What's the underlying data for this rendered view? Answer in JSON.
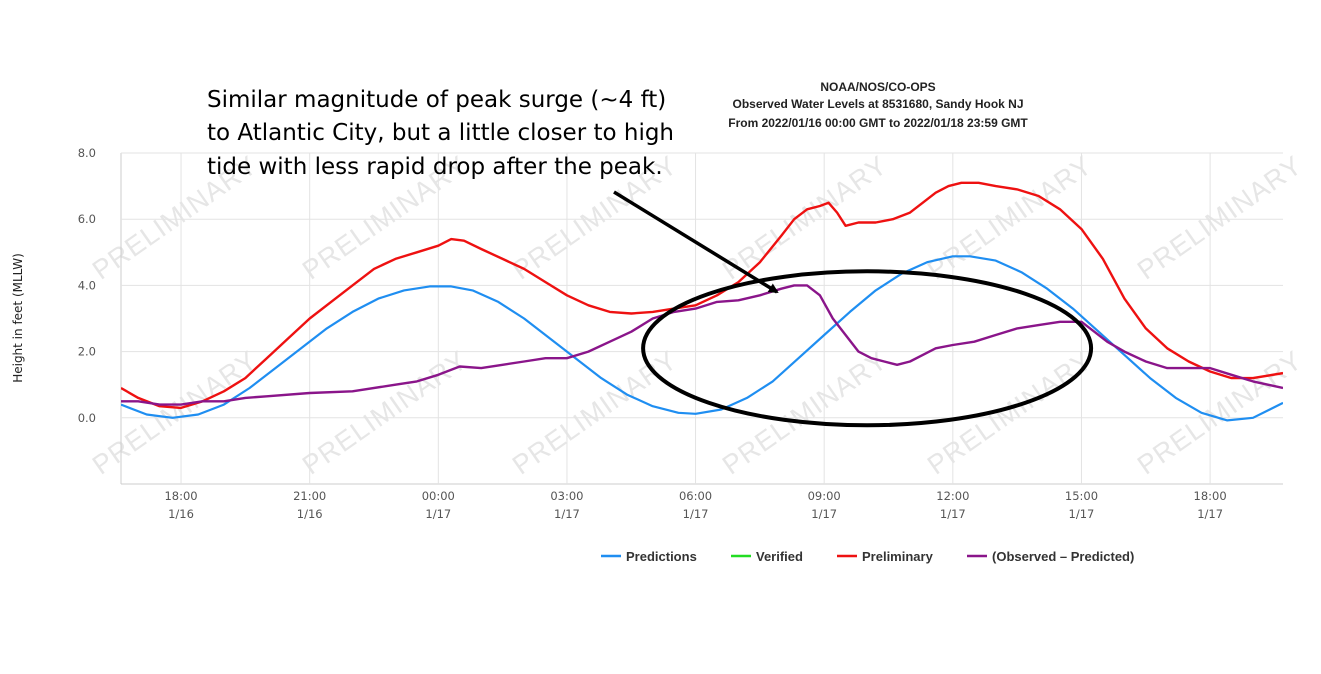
{
  "chart_data": {
    "type": "line",
    "title_lines": [
      "NOAA/NOS/CO-OPS",
      "Observed Water Levels at 8531680, Sandy Hook NJ",
      "From 2022/01/16 00:00 GMT to 2022/01/18 23:59 GMT"
    ],
    "ylabel": "Height in feet (MLLW)",
    "ylim": [
      -2,
      8
    ],
    "xlim_hours": [
      16.6,
      43.7
    ],
    "y_ticks": [
      {
        "value": 8,
        "label": "8.0"
      },
      {
        "value": 6,
        "label": "6.0"
      },
      {
        "value": 4,
        "label": "4.0"
      },
      {
        "value": 2,
        "label": "2.0"
      },
      {
        "value": 0,
        "label": "0.0"
      }
    ],
    "x_ticks": [
      {
        "hour": 18,
        "time": "18:00",
        "date": "1/16"
      },
      {
        "hour": 21,
        "time": "21:00",
        "date": "1/16"
      },
      {
        "hour": 24,
        "time": "00:00",
        "date": "1/17"
      },
      {
        "hour": 27,
        "time": "03:00",
        "date": "1/17"
      },
      {
        "hour": 30,
        "time": "06:00",
        "date": "1/17"
      },
      {
        "hour": 33,
        "time": "09:00",
        "date": "1/17"
      },
      {
        "hour": 36,
        "time": "12:00",
        "date": "1/17"
      },
      {
        "hour": 39,
        "time": "15:00",
        "date": "1/17"
      },
      {
        "hour": 42,
        "time": "18:00",
        "date": "1/17"
      }
    ],
    "grid": true,
    "legend_position": "bottom",
    "series": [
      {
        "name": "Predictions",
        "color": "#1f8ef1",
        "x": [
          16.6,
          17.2,
          17.8,
          18.4,
          19.0,
          19.6,
          20.2,
          20.8,
          21.4,
          22.0,
          22.6,
          23.2,
          23.8,
          24.3,
          24.8,
          25.4,
          26.0,
          26.6,
          27.2,
          27.8,
          28.4,
          29.0,
          29.6,
          30.0,
          30.6,
          31.2,
          31.8,
          32.4,
          33.0,
          33.6,
          34.2,
          34.8,
          35.4,
          36.0,
          36.4,
          37.0,
          37.6,
          38.2,
          38.8,
          39.4,
          40.0,
          40.6,
          41.2,
          41.8,
          42.4,
          43.0,
          43.7
        ],
        "values": [
          0.4,
          0.1,
          0.0,
          0.1,
          0.4,
          0.9,
          1.5,
          2.1,
          2.7,
          3.2,
          3.6,
          3.85,
          3.97,
          3.97,
          3.85,
          3.5,
          3.0,
          2.4,
          1.8,
          1.2,
          0.7,
          0.35,
          0.15,
          0.12,
          0.25,
          0.6,
          1.1,
          1.8,
          2.5,
          3.2,
          3.85,
          4.35,
          4.7,
          4.88,
          4.88,
          4.75,
          4.4,
          3.9,
          3.3,
          2.6,
          1.9,
          1.2,
          0.6,
          0.15,
          -0.08,
          0.0,
          0.45
        ]
      },
      {
        "name": "Verified",
        "color": "#22dd22",
        "x": [],
        "values": []
      },
      {
        "name": "Preliminary",
        "color": "#ee1111",
        "x": [
          16.6,
          17.0,
          17.5,
          18.0,
          18.5,
          19.0,
          19.5,
          20.0,
          20.5,
          21.0,
          21.5,
          22.0,
          22.5,
          23.0,
          23.5,
          24.0,
          24.3,
          24.6,
          25.0,
          25.5,
          26.0,
          26.5,
          27.0,
          27.5,
          28.0,
          28.5,
          29.0,
          29.5,
          30.0,
          30.5,
          31.0,
          31.5,
          32.0,
          32.3,
          32.6,
          32.9,
          33.1,
          33.3,
          33.5,
          33.8,
          34.2,
          34.6,
          35.0,
          35.3,
          35.6,
          35.9,
          36.2,
          36.6,
          37.0,
          37.5,
          38.0,
          38.5,
          39.0,
          39.5,
          40.0,
          40.5,
          41.0,
          41.5,
          42.0,
          42.5,
          43.0,
          43.7
        ],
        "values": [
          0.9,
          0.6,
          0.35,
          0.3,
          0.5,
          0.8,
          1.2,
          1.8,
          2.4,
          3.0,
          3.5,
          4.0,
          4.5,
          4.8,
          5.0,
          5.2,
          5.4,
          5.35,
          5.1,
          4.8,
          4.5,
          4.1,
          3.7,
          3.4,
          3.2,
          3.15,
          3.2,
          3.3,
          3.4,
          3.7,
          4.1,
          4.7,
          5.5,
          6.0,
          6.3,
          6.4,
          6.5,
          6.2,
          5.8,
          5.9,
          5.9,
          6.0,
          6.2,
          6.5,
          6.8,
          7.0,
          7.1,
          7.1,
          7.0,
          6.9,
          6.7,
          6.3,
          5.7,
          4.8,
          3.6,
          2.7,
          2.1,
          1.7,
          1.4,
          1.2,
          1.2,
          1.35
        ]
      },
      {
        "name": "(Observed – Predicted)",
        "color": "#8a158a",
        "x": [
          16.6,
          17.0,
          17.5,
          18.0,
          18.5,
          19.0,
          19.5,
          20.0,
          21.0,
          22.0,
          23.0,
          23.5,
          24.0,
          24.5,
          25.0,
          25.5,
          26.0,
          26.5,
          27.0,
          27.5,
          28.0,
          28.5,
          29.0,
          29.5,
          30.0,
          30.5,
          31.0,
          31.5,
          32.0,
          32.3,
          32.6,
          32.9,
          33.2,
          33.5,
          33.8,
          34.1,
          34.4,
          34.7,
          35.0,
          35.3,
          35.6,
          36.0,
          36.5,
          37.0,
          37.5,
          38.0,
          38.5,
          39.0,
          39.3,
          39.6,
          40.0,
          40.5,
          41.0,
          41.5,
          42.0,
          42.5,
          43.0,
          43.7
        ],
        "values": [
          0.5,
          0.5,
          0.4,
          0.4,
          0.5,
          0.5,
          0.6,
          0.65,
          0.75,
          0.8,
          1.0,
          1.1,
          1.3,
          1.55,
          1.5,
          1.6,
          1.7,
          1.8,
          1.8,
          2.0,
          2.3,
          2.6,
          3.0,
          3.2,
          3.3,
          3.5,
          3.55,
          3.7,
          3.9,
          4.0,
          4.0,
          3.7,
          3.0,
          2.5,
          2.0,
          1.8,
          1.7,
          1.6,
          1.7,
          1.9,
          2.1,
          2.2,
          2.3,
          2.5,
          2.7,
          2.8,
          2.9,
          2.9,
          2.6,
          2.3,
          2.0,
          1.7,
          1.5,
          1.5,
          1.5,
          1.3,
          1.1,
          0.9
        ]
      }
    ],
    "watermark": "PRELIMINARY",
    "annotation": {
      "lines": [
        "Similar magnitude of peak surge (~4 ft)",
        "to Atlantic City, but a little closer to high",
        "tide with less rapid drop after the peak."
      ],
      "ellipse_center": {
        "hour": 34.0,
        "value": 2.1
      },
      "arrow_target": {
        "hour": 31.9,
        "value": 3.8
      }
    }
  }
}
